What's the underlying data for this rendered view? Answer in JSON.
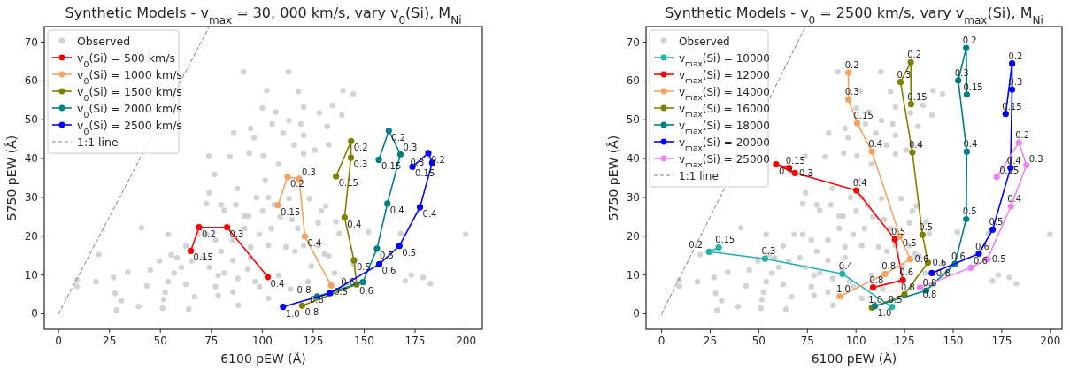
{
  "chart_data": [
    {
      "type": "line",
      "title": "Synthetic Models - v$_{max}$ = 30, 000 km/s, vary v$_{0}$(Si), M$_{Ni}$",
      "xlabel": "6100 pEW (Å)",
      "ylabel": "5750 pEW (Å)",
      "xlim": [
        -7,
        208
      ],
      "ylim": [
        -4,
        74
      ],
      "xticks": [
        0,
        25,
        50,
        75,
        100,
        125,
        150,
        175,
        200
      ],
      "yticks": [
        0,
        10,
        20,
        30,
        40,
        50,
        60,
        70
      ],
      "legend": "top left",
      "series": [
        {
          "type": "scatter",
          "name": "Observed",
          "color": "#d3d3d3",
          "marker": "circle",
          "x": [
            90.7,
            112.8,
            102.2,
            117.7,
            139.6,
            144.6,
            120.3,
            100.1,
            134.5,
            128.0,
            139.1,
            106.6,
            113.1,
            104.9,
            94.3,
            86.0,
            131.9,
            118.9,
            96.0,
            110.2,
            120.3,
            115.7,
            132.6,
            84.2,
            73.8,
            93.6,
            100.5,
            108.0,
            120.3,
            125.8,
            87.8,
            76.6,
            101.4,
            97.2,
            103.0,
            72.6,
            81.3,
            93.3,
            131.2,
            136.2,
            40.8,
            53.8,
            19.8,
            49.5,
            34.0,
            27.0,
            18.4,
            30.9,
            28.5,
            39.3,
            43.4,
            52.4,
            51.6,
            62.5,
            66.8,
            63.9,
            51.1,
            77.0,
            78.4,
            85.6,
            88.2,
            74.0,
            81.3,
            56.7,
            60.3,
            65.4,
            94.3,
            98.6,
            103.0,
            113.8,
            116.0,
            124.0,
            130.5,
            137.7,
            152.2,
            170.2,
            173.1,
            178.9,
            199.8,
            182.5,
            168.0,
            72.6,
            85.6,
            91.4,
            98.6,
            104.4,
            108.8,
            114.5,
            117.4,
            94.3,
            103.0,
            111.6,
            120.3,
            127.5,
            132.6,
            79.8,
            85.6,
            92.9,
            71.1,
            62.5,
            58.1,
            45.1,
            78.4,
            88.0,
            96.5,
            108.0,
            122.5,
            135.5,
            140.0,
            144.8,
            74.0,
            79.8,
            87.0,
            91.4,
            100.1,
            105.8,
            113.1,
            123.2,
            129.0,
            127.5,
            77.0,
            68.3,
            55.3,
            27.8,
            53.8,
            9.1,
            9.1
          ],
          "values": [
            62.3,
            62.3,
            57.5,
            57.3,
            57.5,
            56.6,
            53.3,
            53.0,
            53.7,
            51.8,
            51.2,
            52.0,
            49.8,
            48.9,
            47.8,
            46.6,
            48.3,
            48.9,
            45.4,
            46.6,
            46.0,
            43.5,
            43.6,
            40.5,
            40.6,
            41.4,
            40.7,
            38.6,
            41.2,
            42.2,
            32.3,
            35.9,
            34.4,
            30.0,
            30.0,
            28.4,
            26.7,
            25.2,
            27.8,
            23.7,
            22.2,
            20.5,
            15.3,
            13.6,
            10.7,
            9.4,
            8.3,
            3.4,
            0.9,
            1.9,
            7.2,
            5.6,
            3.7,
            7.6,
            4.4,
            1.2,
            1.4,
            7.0,
            4.8,
            5.6,
            2.2,
            12.0,
            10.5,
            10.5,
            12.0,
            13.6,
            14.5,
            7.0,
            4.0,
            6.4,
            16.1,
            12.3,
            15.4,
            20.7,
            21.1,
            8.5,
            10.0,
            9.4,
            20.5,
            7.8,
            20.7,
            20.5,
            19.0,
            22.0,
            20.5,
            22.0,
            25.0,
            24.3,
            22.0,
            17.2,
            17.6,
            17.2,
            17.6,
            17.6,
            14.9,
            16.1,
            13.8,
            11.5,
            14.4,
            17.5,
            14.4,
            11.3,
            9.9,
            9.1,
            8.3,
            9.9,
            8.3,
            10.5,
            7.5,
            12.9,
            31.2,
            28.1,
            28.1,
            25.2,
            26.5,
            28.1,
            29.7,
            29.7,
            26.5,
            23.4,
            19.0,
            20.5,
            15.2,
            5.3,
            8.3,
            8.7,
            7.1
          ]
        },
        {
          "type": "line",
          "name": "v$_{0}$(Si) = 500 km/s",
          "color": "#ff0000",
          "marker": "circle",
          "x": [
            64.9,
            69.0,
            82.7,
            102.7
          ],
          "values": [
            16.2,
            22.3,
            22.3,
            9.5
          ]
        },
        {
          "type": "line",
          "name": "v$_{0}$(Si) = 1000 km/s",
          "color": "#f4a460",
          "marker": "circle",
          "x": [
            107.7,
            112.4,
            118.1,
            120.9,
            133.8
          ],
          "values": [
            28.0,
            35.3,
            34.8,
            20.0,
            7.3
          ]
        },
        {
          "type": "line",
          "name": "v$_{0}$(Si) = 1500 km/s",
          "color": "#808000",
          "marker": "circle",
          "x": [
            136.2,
            143.6,
            143.5,
            140.4,
            145.0,
            146.3,
            119.6
          ],
          "values": [
            35.4,
            44.5,
            40.2,
            24.8,
            13.8,
            7.6,
            2.1
          ]
        },
        {
          "type": "line",
          "name": "v$_{0}$(Si) = 2000 km/s",
          "color": "#008080",
          "marker": "circle",
          "x": [
            157.2,
            162.1,
            167.8,
            161.4,
            156.3,
            149.4,
            127.0
          ],
          "values": [
            39.7,
            47.2,
            41.1,
            28.4,
            16.8,
            8.2,
            4.5
          ]
        },
        {
          "type": "line",
          "name": "v$_{0}$(Si) = 2500 km/s",
          "color": "#0000ff",
          "marker": "circle",
          "x": [
            173.7,
            181.5,
            183.4,
            177.4,
            167.3,
            157.4,
            133.2,
            110.2
          ],
          "values": [
            37.9,
            41.4,
            38.9,
            27.5,
            17.5,
            12.8,
            5.3,
            1.8
          ]
        },
        {
          "type": "line",
          "name": "1:1 line",
          "color": "#808080",
          "marker": "none",
          "line_style": "dashed",
          "x": [
            0,
            74
          ],
          "values": [
            0,
            74
          ]
        }
      ],
      "annotations": [
        {
          "text": "0.15",
          "x": 64.9,
          "y": 16.2
        },
        {
          "text": "0.2",
          "x": 69.0,
          "y": 22.3
        },
        {
          "text": "0.3",
          "x": 82.7,
          "y": 22.3
        },
        {
          "text": "0.4",
          "x": 102.7,
          "y": 9.5
        },
        {
          "text": "0.15",
          "x": 107.7,
          "y": 28.0
        },
        {
          "text": "0.2",
          "x": 112.4,
          "y": 35.3
        },
        {
          "text": "0.3",
          "x": 118.1,
          "y": 34.8
        },
        {
          "text": "0.4",
          "x": 120.9,
          "y": 20.0
        },
        {
          "text": "0.5",
          "x": 133.8,
          "y": 7.3
        },
        {
          "text": "0.15",
          "x": 136.2,
          "y": 35.4
        },
        {
          "text": "0.2",
          "x": 143.6,
          "y": 44.5
        },
        {
          "text": "0.3",
          "x": 143.5,
          "y": 40.2
        },
        {
          "text": "0.4",
          "x": 140.4,
          "y": 24.8
        },
        {
          "text": "0.5",
          "x": 145.0,
          "y": 13.8
        },
        {
          "text": "0.6",
          "x": 146.3,
          "y": 7.6
        },
        {
          "text": "0.8",
          "x": 119.6,
          "y": 2.1
        },
        {
          "text": "0.15",
          "x": 157.2,
          "y": 39.7
        },
        {
          "text": "0.2",
          "x": 162.1,
          "y": 47.2
        },
        {
          "text": "0.3",
          "x": 167.8,
          "y": 41.1
        },
        {
          "text": "0.4",
          "x": 161.4,
          "y": 28.4
        },
        {
          "text": "0.5",
          "x": 156.3,
          "y": 16.8
        },
        {
          "text": "0.6",
          "x": 149.4,
          "y": 8.2
        },
        {
          "text": "0.8",
          "x": 127.0,
          "y": 4.5
        },
        {
          "text": "0.15",
          "x": 173.7,
          "y": 37.9
        },
        {
          "text": "0.2",
          "x": 181.5,
          "y": 41.4
        },
        {
          "text": "0.3",
          "x": 183.4,
          "y": 38.9
        },
        {
          "text": "0.4",
          "x": 177.4,
          "y": 27.5
        },
        {
          "text": "0.5",
          "x": 167.3,
          "y": 17.5
        },
        {
          "text": "0.6",
          "x": 157.4,
          "y": 12.8
        },
        {
          "text": "0.8",
          "x": 133.2,
          "y": 5.3
        },
        {
          "text": "1.0",
          "x": 110.2,
          "y": 1.8
        }
      ]
    },
    {
      "type": "line",
      "title": "Synthetic Models - v$_{0}$ = 2500 km/s, vary v$_{max}$(Si), M$_{Ni}$",
      "xlabel": "6100 pEW (Å)",
      "ylabel": "5750 pEW (Å)",
      "xlim": [
        -8,
        206
      ],
      "ylim": [
        -4,
        74
      ],
      "xticks": [
        0,
        25,
        50,
        75,
        100,
        125,
        150,
        175,
        200
      ],
      "yticks": [
        0,
        10,
        20,
        30,
        40,
        50,
        60,
        70
      ],
      "legend": "top left",
      "series": [
        {
          "type": "scatter",
          "name": "Observed",
          "color": "#d3d3d3",
          "marker": "circle",
          "x": [
            90.7,
            112.8,
            102.2,
            117.7,
            139.6,
            144.6,
            120.3,
            100.1,
            134.5,
            128.0,
            139.1,
            106.6,
            113.1,
            104.9,
            94.3,
            86.0,
            131.9,
            118.9,
            96.0,
            110.2,
            120.3,
            115.7,
            132.6,
            84.2,
            73.8,
            93.6,
            100.5,
            108.0,
            120.3,
            125.8,
            87.8,
            76.6,
            101.4,
            97.2,
            103.0,
            72.6,
            81.3,
            93.3,
            131.2,
            136.2,
            40.8,
            53.8,
            19.8,
            49.5,
            34.0,
            27.0,
            18.4,
            30.9,
            28.5,
            39.3,
            43.4,
            52.4,
            51.6,
            62.5,
            66.8,
            63.9,
            51.1,
            77.0,
            78.4,
            85.6,
            88.2,
            74.0,
            81.3,
            56.7,
            60.3,
            65.4,
            94.3,
            98.6,
            103.0,
            113.8,
            116.0,
            124.0,
            130.5,
            137.7,
            152.2,
            170.2,
            173.1,
            178.9,
            199.8,
            182.5,
            168.0,
            72.6,
            85.6,
            91.4,
            98.6,
            104.4,
            108.8,
            114.5,
            117.4,
            94.3,
            103.0,
            111.6,
            120.3,
            127.5,
            132.6,
            79.8,
            85.6,
            92.9,
            71.1,
            62.5,
            58.1,
            45.1,
            78.4,
            88.0,
            96.5,
            108.0,
            122.5,
            135.5,
            140.0,
            144.8,
            74.0,
            79.8,
            87.0,
            91.4,
            100.1,
            105.8,
            113.1,
            123.2,
            129.0,
            127.5,
            77.0,
            68.3,
            55.3,
            27.8,
            53.8,
            9.1,
            9.1
          ],
          "values": [
            62.3,
            62.3,
            57.5,
            57.3,
            57.5,
            56.6,
            53.3,
            53.0,
            53.7,
            51.8,
            51.2,
            52.0,
            49.8,
            48.9,
            47.8,
            46.6,
            48.3,
            48.9,
            45.4,
            46.6,
            46.0,
            43.5,
            43.6,
            40.5,
            40.6,
            41.4,
            40.7,
            38.6,
            41.2,
            42.2,
            32.3,
            35.9,
            34.4,
            30.0,
            30.0,
            28.4,
            26.7,
            25.2,
            27.8,
            23.7,
            22.2,
            20.5,
            15.3,
            13.6,
            10.7,
            9.4,
            8.3,
            3.4,
            0.9,
            1.9,
            7.2,
            5.6,
            3.7,
            7.6,
            4.4,
            1.2,
            1.4,
            7.0,
            4.8,
            5.6,
            2.2,
            12.0,
            10.5,
            10.5,
            12.0,
            13.6,
            14.5,
            7.0,
            4.0,
            6.4,
            16.1,
            12.3,
            15.4,
            20.7,
            21.1,
            8.5,
            10.0,
            9.4,
            20.5,
            7.8,
            20.7,
            20.5,
            19.0,
            22.0,
            20.5,
            22.0,
            25.0,
            24.3,
            22.0,
            17.2,
            17.6,
            17.2,
            17.6,
            17.6,
            14.9,
            16.1,
            13.8,
            11.5,
            14.4,
            17.5,
            14.4,
            11.3,
            9.9,
            9.1,
            8.3,
            9.9,
            8.3,
            10.5,
            7.5,
            12.9,
            31.2,
            28.1,
            28.1,
            25.2,
            26.5,
            28.1,
            29.7,
            29.7,
            26.5,
            23.4,
            19.0,
            20.5,
            15.2,
            5.3,
            8.3,
            8.7,
            7.1
          ]
        },
        {
          "type": "line",
          "name": "v$_{max}$(Si) = 10000",
          "color": "#20b2aa",
          "marker": "circle",
          "x": [
            29.4,
            24.4,
            53.2,
            93.0,
            118.5
          ],
          "values": [
            17.1,
            16.0,
            14.2,
            10.3,
            1.8
          ]
        },
        {
          "type": "line",
          "name": "v$_{max}$(Si) = 12000",
          "color": "#ff0000",
          "marker": "circle",
          "x": [
            65.6,
            58.9,
            68.5,
            100.2,
            120.0,
            124.1,
            108.8
          ],
          "values": [
            37.6,
            38.5,
            36.3,
            31.8,
            19.2,
            8.7,
            6.8
          ]
        },
        {
          "type": "line",
          "name": "v$_{max}$(Si) = 14000",
          "color": "#f4a460",
          "marker": "circle",
          "x": [
            96.1,
            96.1,
            100.6,
            108.2,
            122.6,
            127.9,
            115.0,
            91.7
          ],
          "values": [
            62.1,
            55.2,
            49.1,
            41.8,
            20.0,
            14.1,
            10.3,
            4.5
          ]
        },
        {
          "type": "line",
          "name": "v$_{max}$(Si) = 16000",
          "color": "#808000",
          "marker": "circle",
          "x": [
            128.3,
            128.2,
            122.9,
            129.0,
            134.2,
            137.0,
            124.9,
            108.2
          ],
          "values": [
            54.0,
            64.8,
            59.7,
            41.6,
            20.4,
            13.2,
            5.0,
            1.6
          ]
        },
        {
          "type": "line",
          "name": "v$_{max}$(Si) = 18000",
          "color": "#008080",
          "marker": "circle",
          "x": [
            157.0,
            156.7,
            152.6,
            157.0,
            156.7,
            150.9,
            136.1,
            109.7
          ],
          "values": [
            56.5,
            68.5,
            60.1,
            41.8,
            24.4,
            12.9,
            6.0,
            2.0
          ]
        },
        {
          "type": "line",
          "name": "v$_{max}$(Si) = 20000",
          "color": "#0000ff",
          "marker": "circle",
          "x": [
            177.0,
            180.3,
            180.3,
            179.5,
            170.3,
            163.2,
            139.0
          ],
          "values": [
            51.5,
            64.5,
            57.8,
            37.6,
            21.7,
            15.5,
            10.5
          ]
        },
        {
          "type": "line",
          "name": "v$_{max}$(Si) = 25000",
          "color": "#ee82ee",
          "marker": "circle",
          "x": [
            172.4,
            183.8,
            187.7,
            179.7,
            167.6,
            159.1,
            132.9
          ],
          "values": [
            35.3,
            44.1,
            38.3,
            27.7,
            14.1,
            11.9,
            6.8
          ]
        },
        {
          "type": "line",
          "name": "1:1 line",
          "color": "#808080",
          "marker": "none",
          "line_style": "dashed",
          "x": [
            0,
            74
          ],
          "values": [
            0,
            74
          ]
        }
      ],
      "annotations": [
        {
          "text": "0.15",
          "x": 29.4,
          "y": 17.1
        },
        {
          "text": "0.2",
          "x": 24.4,
          "y": 16.0
        },
        {
          "text": "0.3",
          "x": 53.2,
          "y": 14.2
        },
        {
          "text": "0.4",
          "x": 93.0,
          "y": 10.3
        },
        {
          "text": "0.5",
          "x": 118.5,
          "y": 1.8
        },
        {
          "text": "0.15",
          "x": 65.6,
          "y": 37.6
        },
        {
          "text": "0.2",
          "x": 58.9,
          "y": 38.5
        },
        {
          "text": "0.3",
          "x": 68.5,
          "y": 36.3
        },
        {
          "text": "0.4",
          "x": 100.2,
          "y": 31.8
        },
        {
          "text": "0.5",
          "x": 120.0,
          "y": 19.2
        },
        {
          "text": "0.6",
          "x": 124.1,
          "y": 8.7
        },
        {
          "text": "0.8",
          "x": 108.8,
          "y": 6.8
        },
        {
          "text": "0.2",
          "x": 96.1,
          "y": 62.1
        },
        {
          "text": "0.3",
          "x": 96.1,
          "y": 55.2
        },
        {
          "text": "0.15",
          "x": 100.6,
          "y": 49.1
        },
        {
          "text": "0.4",
          "x": 108.2,
          "y": 41.8
        },
        {
          "text": "0.5",
          "x": 122.6,
          "y": 20.0
        },
        {
          "text": "0.6",
          "x": 127.9,
          "y": 14.1
        },
        {
          "text": "0.8",
          "x": 115.0,
          "y": 10.3
        },
        {
          "text": "1.0",
          "x": 91.7,
          "y": 4.5
        },
        {
          "text": "0.15",
          "x": 128.3,
          "y": 54.0
        },
        {
          "text": "0.2",
          "x": 128.2,
          "y": 64.8
        },
        {
          "text": "0.3",
          "x": 122.9,
          "y": 59.7
        },
        {
          "text": "0.4",
          "x": 129.0,
          "y": 41.6
        },
        {
          "text": "0.5",
          "x": 134.2,
          "y": 20.4
        },
        {
          "text": "0.6",
          "x": 137.0,
          "y": 13.2
        },
        {
          "text": "0.8",
          "x": 124.9,
          "y": 5.0
        },
        {
          "text": "1.0",
          "x": 108.2,
          "y": 1.6
        },
        {
          "text": "0.15",
          "x": 157.0,
          "y": 56.5
        },
        {
          "text": "0.2",
          "x": 156.7,
          "y": 68.5
        },
        {
          "text": "0.3",
          "x": 152.6,
          "y": 60.1
        },
        {
          "text": "0.4",
          "x": 157.0,
          "y": 41.8
        },
        {
          "text": "0.5",
          "x": 156.7,
          "y": 24.4
        },
        {
          "text": "0.6",
          "x": 150.9,
          "y": 12.9
        },
        {
          "text": "0.8",
          "x": 136.1,
          "y": 6.0
        },
        {
          "text": "1.0",
          "x": 109.7,
          "y": 2.0
        },
        {
          "text": "0.15",
          "x": 177.0,
          "y": 51.5
        },
        {
          "text": "0.2",
          "x": 180.3,
          "y": 64.5
        },
        {
          "text": "0.3",
          "x": 180.3,
          "y": 57.8
        },
        {
          "text": "0.4",
          "x": 179.5,
          "y": 37.6
        },
        {
          "text": "0.5",
          "x": 170.3,
          "y": 21.7
        },
        {
          "text": "0.6",
          "x": 163.2,
          "y": 15.5
        },
        {
          "text": "0.8",
          "x": 139.0,
          "y": 10.5
        },
        {
          "text": "0.15",
          "x": 172.4,
          "y": 35.3
        },
        {
          "text": "0.2",
          "x": 183.8,
          "y": 44.1
        },
        {
          "text": "0.3",
          "x": 187.7,
          "y": 38.3
        },
        {
          "text": "0.4",
          "x": 179.7,
          "y": 27.7
        },
        {
          "text": "0.5",
          "x": 167.6,
          "y": 14.1
        },
        {
          "text": "0.6",
          "x": 159.1,
          "y": 11.9
        },
        {
          "text": "0.8",
          "x": 132.9,
          "y": 6.8
        }
      ]
    }
  ]
}
